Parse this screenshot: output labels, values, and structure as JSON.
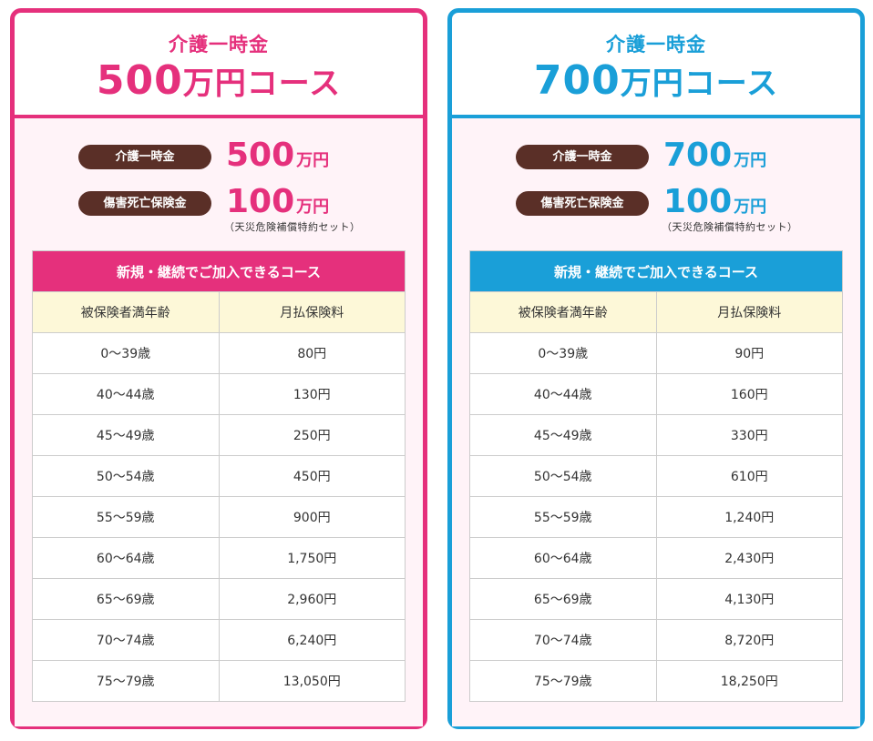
{
  "courses": [
    {
      "head_sub": "介護一時金",
      "head_amount": "500",
      "head_unit": "万円コース",
      "benefits": [
        {
          "label": "介護一時金",
          "amount": "500",
          "unit": "万円"
        },
        {
          "label": "傷害死亡保険金",
          "amount": "100",
          "unit": "万円"
        }
      ],
      "note": "（天災危険補償特約セット）",
      "table_title": "新規・継続でご加入できるコース",
      "col_age": "被保険者満年齢",
      "col_premium": "月払保険料",
      "rows": [
        {
          "age": "0～39歳",
          "premium": "80円"
        },
        {
          "age": "40～44歳",
          "premium": "130円"
        },
        {
          "age": "45～49歳",
          "premium": "250円"
        },
        {
          "age": "50～54歳",
          "premium": "450円"
        },
        {
          "age": "55～59歳",
          "premium": "900円"
        },
        {
          "age": "60～64歳",
          "premium": "1,750円"
        },
        {
          "age": "65～69歳",
          "premium": "2,960円"
        },
        {
          "age": "70～74歳",
          "premium": "6,240円"
        },
        {
          "age": "75～79歳",
          "premium": "13,050円"
        }
      ],
      "accent": "#e5307c"
    },
    {
      "head_sub": "介護一時金",
      "head_amount": "700",
      "head_unit": "万円コース",
      "benefits": [
        {
          "label": "介護一時金",
          "amount": "700",
          "unit": "万円"
        },
        {
          "label": "傷害死亡保険金",
          "amount": "100",
          "unit": "万円"
        }
      ],
      "note": "（天災危険補償特約セット）",
      "table_title": "新規・継続でご加入できるコース",
      "col_age": "被保険者満年齢",
      "col_premium": "月払保険料",
      "rows": [
        {
          "age": "0～39歳",
          "premium": "90円"
        },
        {
          "age": "40～44歳",
          "premium": "160円"
        },
        {
          "age": "45～49歳",
          "premium": "330円"
        },
        {
          "age": "50～54歳",
          "premium": "610円"
        },
        {
          "age": "55～59歳",
          "premium": "1,240円"
        },
        {
          "age": "60～64歳",
          "premium": "2,430円"
        },
        {
          "age": "65～69歳",
          "premium": "4,130円"
        },
        {
          "age": "70～74歳",
          "premium": "8,720円"
        },
        {
          "age": "75～79歳",
          "premium": "18,250円"
        }
      ],
      "accent": "#1a9fd8"
    }
  ],
  "colors": {
    "pink_accent": "#e5307c",
    "blue_accent": "#1a9fd8",
    "pill_bg": "#5a2f27",
    "header_row_bg": "#fdf8d8",
    "body_bg": "#fff3f8"
  }
}
